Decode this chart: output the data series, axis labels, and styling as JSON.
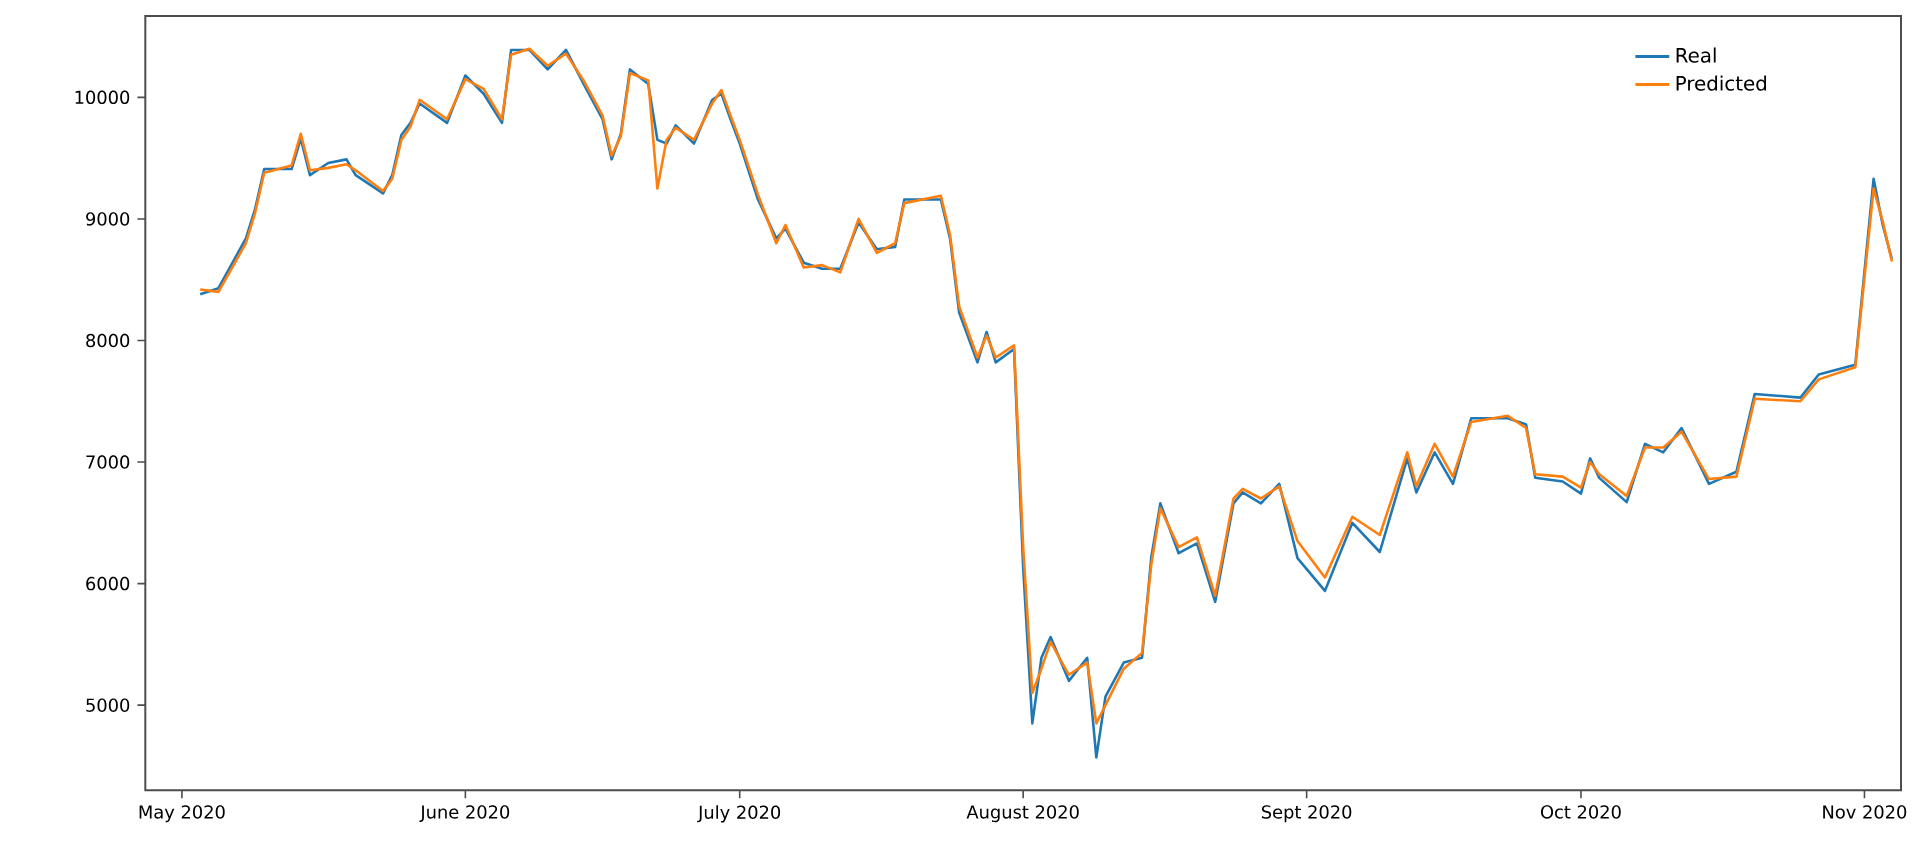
{
  "chart_data": {
    "type": "line",
    "x": [
      "2020-05-03",
      "2020-05-05",
      "2020-05-08",
      "2020-05-09",
      "2020-05-10",
      "2020-05-13",
      "2020-05-14",
      "2020-05-15",
      "2020-05-17",
      "2020-05-19",
      "2020-05-20",
      "2020-05-23",
      "2020-05-24",
      "2020-05-25",
      "2020-05-26",
      "2020-05-27",
      "2020-05-30",
      "2020-06-01",
      "2020-06-03",
      "2020-06-05",
      "2020-06-06",
      "2020-06-08",
      "2020-06-10",
      "2020-06-12",
      "2020-06-14",
      "2020-06-16",
      "2020-06-17",
      "2020-06-18",
      "2020-06-19",
      "2020-06-21",
      "2020-06-22",
      "2020-06-23",
      "2020-06-24",
      "2020-06-26",
      "2020-06-28",
      "2020-06-29",
      "2020-06-30",
      "2020-07-01",
      "2020-07-03",
      "2020-07-05",
      "2020-07-06",
      "2020-07-08",
      "2020-07-10",
      "2020-07-12",
      "2020-07-14",
      "2020-07-16",
      "2020-07-18",
      "2020-07-19",
      "2020-07-23",
      "2020-07-24",
      "2020-07-25",
      "2020-07-27",
      "2020-07-28",
      "2020-07-29",
      "2020-07-31",
      "2020-08-01",
      "2020-08-02",
      "2020-08-03",
      "2020-08-04",
      "2020-08-06",
      "2020-08-08",
      "2020-08-09",
      "2020-08-10",
      "2020-08-12",
      "2020-08-14",
      "2020-08-15",
      "2020-08-16",
      "2020-08-18",
      "2020-08-20",
      "2020-08-22",
      "2020-08-24",
      "2020-08-25",
      "2020-08-27",
      "2020-08-29",
      "2020-08-31",
      "2020-09-03",
      "2020-09-06",
      "2020-09-09",
      "2020-09-12",
      "2020-09-13",
      "2020-09-15",
      "2020-09-17",
      "2020-09-19",
      "2020-09-23",
      "2020-09-25",
      "2020-09-26",
      "2020-09-29",
      "2020-10-01",
      "2020-10-02",
      "2020-10-03",
      "2020-10-06",
      "2020-10-08",
      "2020-10-10",
      "2020-10-12",
      "2020-10-15",
      "2020-10-18",
      "2020-10-20",
      "2020-10-25",
      "2020-10-27",
      "2020-10-31",
      "2020-11-02",
      "2020-11-03",
      "2020-11-04"
    ],
    "series": [
      {
        "name": "Real",
        "color": "#1f77b4",
        "values": [
          8380,
          8430,
          8840,
          9080,
          9410,
          9410,
          9660,
          9360,
          9460,
          9490,
          9360,
          9210,
          9360,
          9690,
          9790,
          9950,
          9790,
          10180,
          10030,
          9790,
          10390,
          10390,
          10230,
          10390,
          10100,
          9820,
          9490,
          9700,
          10230,
          10110,
          9650,
          9620,
          9770,
          9620,
          9980,
          10030,
          9820,
          9620,
          9160,
          8840,
          8920,
          8640,
          8590,
          8590,
          8970,
          8750,
          8770,
          9160,
          9160,
          8840,
          8230,
          7820,
          8070,
          7820,
          7930,
          6130,
          4850,
          5390,
          5560,
          5200,
          5390,
          4570,
          5070,
          5350,
          5390,
          6210,
          6660,
          6250,
          6330,
          5850,
          6660,
          6750,
          6660,
          6820,
          6210,
          5940,
          6500,
          6260,
          7030,
          6750,
          7080,
          6820,
          7360,
          7360,
          7310,
          6870,
          6840,
          6740,
          7030,
          6870,
          6670,
          7150,
          7080,
          7280,
          6820,
          6920,
          7560,
          7530,
          7720,
          7800,
          9330,
          8950,
          8670
        ]
      },
      {
        "name": "Predicted",
        "color": "#ff7f0e",
        "values": [
          8420,
          8400,
          8800,
          9050,
          9380,
          9440,
          9700,
          9400,
          9420,
          9450,
          9400,
          9230,
          9330,
          9650,
          9760,
          9980,
          9820,
          10150,
          10070,
          9820,
          10350,
          10400,
          10260,
          10360,
          10130,
          9850,
          9520,
          9680,
          10200,
          10140,
          9250,
          9650,
          9750,
          9650,
          9950,
          10060,
          9850,
          9650,
          9200,
          8800,
          8950,
          8600,
          8620,
          8560,
          9000,
          8720,
          8800,
          9130,
          9190,
          8870,
          8280,
          7860,
          8040,
          7860,
          7960,
          6300,
          5100,
          5300,
          5520,
          5250,
          5350,
          4850,
          5000,
          5300,
          5430,
          6150,
          6620,
          6300,
          6380,
          5900,
          6700,
          6780,
          6700,
          6800,
          6350,
          6050,
          6550,
          6400,
          7080,
          6800,
          7150,
          6880,
          7330,
          7380,
          7280,
          6900,
          6880,
          6790,
          7000,
          6900,
          6720,
          7120,
          7120,
          7250,
          6860,
          6880,
          7520,
          7500,
          7680,
          7780,
          9250,
          8980,
          8650
        ]
      }
    ],
    "xlim": [
      "2020-04-27",
      "2020-11-05"
    ],
    "xticks": [
      {
        "value": "2020-05-01",
        "label": "May 2020"
      },
      {
        "value": "2020-06-01",
        "label": "June 2020"
      },
      {
        "value": "2020-07-01",
        "label": "July 2020"
      },
      {
        "value": "2020-08-01",
        "label": "August 2020"
      },
      {
        "value": "2020-09-01",
        "label": "Sept 2020"
      },
      {
        "value": "2020-10-01",
        "label": "Oct 2020"
      },
      {
        "value": "2020-11-01",
        "label": "Nov 2020"
      }
    ],
    "ylim": [
      4300,
      10670
    ],
    "yticks": [
      5000,
      6000,
      7000,
      8000,
      9000,
      10000
    ],
    "legend": "top right",
    "grid": false,
    "marker": "none",
    "line_style": "solid"
  }
}
